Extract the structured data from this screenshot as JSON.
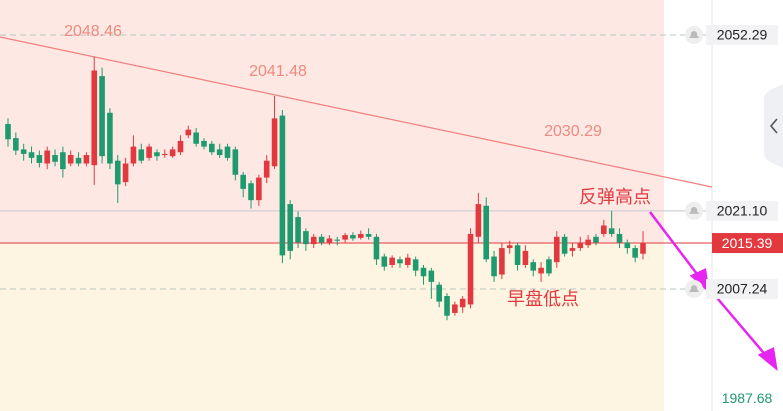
{
  "chart_data": {
    "type": "candlestick",
    "open": [
      2036.5,
      2034.0,
      2032.0,
      2031.5,
      2031.0,
      2029.5,
      2031.0,
      2031.5,
      2029.5,
      2030.5,
      2029.5,
      2029.2,
      2045.0,
      2038.5,
      2030.0,
      2026.2,
      2029.5,
      2032.0,
      2030.5,
      2031.5,
      2031.0,
      2030.8,
      2031.5,
      2034.5,
      2035.0,
      2033.5,
      2033.0,
      2032.0,
      2032.5,
      2032.0,
      2027.5,
      2026.0,
      2023.0,
      2027.0,
      2029.0,
      2038.0,
      2022.3,
      2020.0,
      2017.5,
      2015.2,
      2016.5,
      2015.5,
      2016.0,
      2016.0,
      2016.8,
      2016.3,
      2017.0,
      2016.5,
      2013.0,
      2011.5,
      2012.5,
      2011.5,
      2012.5,
      2011.0,
      2010.5,
      2008.0,
      2006.0,
      2003.0,
      2004.0,
      2004.5,
      2016.5,
      2022.0,
      2013.0,
      2009.8,
      2014.5,
      2015.0,
      2011.5,
      2012.0,
      2010.0,
      2012.5,
      2012.0,
      2016.5,
      2014.0,
      2014.5,
      2015.0,
      2016.5,
      2017.0,
      2018.0,
      2017.0,
      2015.5,
      2014.5,
      2013.5
    ],
    "high": [
      2037.5,
      2035.0,
      2033.0,
      2032.5,
      2031.8,
      2032.5,
      2032.0,
      2032.5,
      2031.8,
      2031.5,
      2031.5,
      2048.46,
      2046.5,
      2039.3,
      2031.0,
      2030.5,
      2034.5,
      2033.0,
      2033.0,
      2032.0,
      2032.0,
      2032.5,
      2034.5,
      2036.2,
      2035.8,
      2034.0,
      2033.5,
      2033.0,
      2033.0,
      2032.5,
      2028.0,
      2026.5,
      2027.5,
      2031.0,
      2041.48,
      2039.0,
      2023.0,
      2021.0,
      2018.0,
      2017.0,
      2017.0,
      2016.8,
      2016.5,
      2017.2,
      2017.3,
      2017.6,
      2018.0,
      2017.0,
      2013.5,
      2013.2,
      2013.0,
      2013.5,
      2013.0,
      2011.5,
      2011.0,
      2008.5,
      2006.5,
      2005.0,
      2006.0,
      2018.0,
      2024.3,
      2023.5,
      2014.0,
      2015.5,
      2015.8,
      2015.5,
      2015.0,
      2012.5,
      2012.0,
      2013.0,
      2017.5,
      2017.0,
      2015.5,
      2016.5,
      2016.8,
      2017.0,
      2019.5,
      2021.1,
      2018.0,
      2016.0,
      2015.0,
      2017.5
    ],
    "low": [
      2032.5,
      2031.0,
      2030.0,
      2029.5,
      2028.8,
      2028.5,
      2029.0,
      2027.0,
      2029.0,
      2029.0,
      2029.0,
      2025.7,
      2029.5,
      2028.5,
      2022.5,
      2025.5,
      2029.0,
      2029.5,
      2030.0,
      2030.0,
      2030.5,
      2030.5,
      2031.0,
      2034.0,
      2032.5,
      2032.0,
      2031.0,
      2030.5,
      2030.0,
      2026.5,
      2023.5,
      2021.5,
      2022.0,
      2026.0,
      2028.5,
      2011.8,
      2012.5,
      2014.5,
      2014.0,
      2014.5,
      2015.0,
      2015.0,
      2015.0,
      2015.5,
      2015.8,
      2016.0,
      2016.0,
      2011.5,
      2010.5,
      2011.0,
      2011.0,
      2011.0,
      2009.5,
      2008.0,
      2005.5,
      2004.0,
      2001.7,
      2002.5,
      2003.0,
      2003.8,
      2015.5,
      2012.0,
      2008.5,
      2009.0,
      2013.5,
      2010.5,
      2011.0,
      2009.5,
      2008.5,
      2009.5,
      2011.0,
      2013.0,
      2013.0,
      2014.0,
      2014.5,
      2015.0,
      2016.5,
      2016.5,
      2014.5,
      2013.5,
      2012.0,
      2012.5
    ],
    "close": [
      2033.8,
      2031.8,
      2031.2,
      2030.5,
      2029.6,
      2031.8,
      2029.8,
      2028.5,
      2031.0,
      2029.5,
      2031.0,
      2046.0,
      2030.8,
      2029.5,
      2025.8,
      2029.5,
      2032.5,
      2030.0,
      2032.5,
      2030.8,
      2031.2,
      2032.0,
      2033.5,
      2035.5,
      2033.0,
      2032.5,
      2031.5,
      2031.0,
      2030.5,
      2027.5,
      2025.0,
      2023.0,
      2027.0,
      2030.0,
      2037.5,
      2013.2,
      2014.0,
      2015.5,
      2015.2,
      2016.5,
      2015.5,
      2016.2,
      2015.8,
      2016.8,
      2016.2,
      2017.0,
      2016.5,
      2012.5,
      2011.2,
      2012.8,
      2011.8,
      2012.8,
      2010.5,
      2009.5,
      2008.5,
      2005.0,
      2002.5,
      2004.5,
      2005.5,
      2017.0,
      2022.3,
      2012.5,
      2009.5,
      2014.5,
      2015.0,
      2011.5,
      2014.0,
      2010.5,
      2011.0,
      2010.0,
      2016.5,
      2013.5,
      2014.5,
      2015.5,
      2016.0,
      2015.5,
      2018.5,
      2017.0,
      2015.5,
      2014.5,
      2012.8,
      2015.39
    ],
    "up_color": "#e2393f",
    "down_color": "#1f9a6f",
    "ylim": [
      1985.6,
      2058.5
    ],
    "annotations": [
      2048.46,
      2041.48,
      2030.29
    ],
    "notes": [
      "反弹高点",
      "早盘低点"
    ],
    "price_lines": [
      2052.29,
      {
        "value": 2021.1,
        "label": "2021.10"
      },
      2007.24
    ],
    "current_price": 2015.39,
    "bottom_price": 1987.68
  }
}
